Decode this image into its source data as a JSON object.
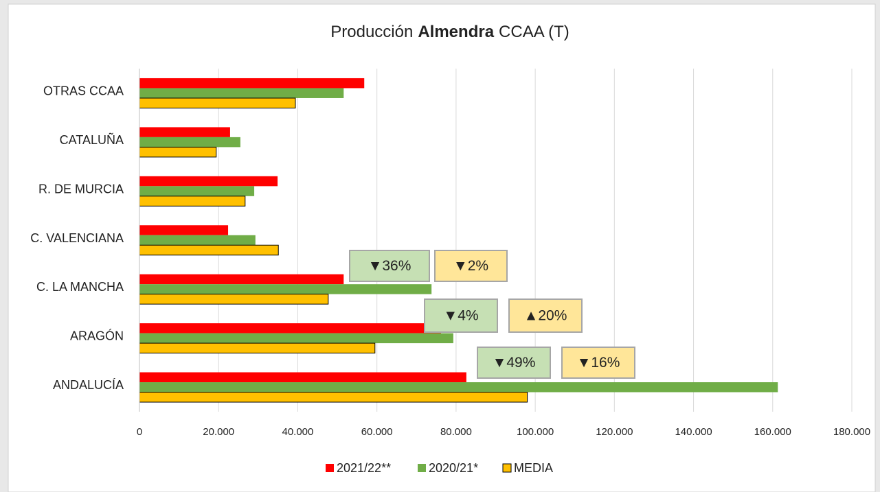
{
  "chart_data": {
    "type": "bar",
    "orientation": "horizontal",
    "title_parts": [
      "Producción",
      "Almendra",
      "CCAA (T)"
    ],
    "categories": [
      "ANDALUCÍA",
      "ARAGÓN",
      "C. LA MANCHA",
      "C. VALENCIANA",
      "R. DE MURCIA",
      "CATALUÑA",
      "OTRAS CCAA"
    ],
    "series": [
      {
        "name": "2021/22**",
        "color": "#ff0000",
        "values": [
          82600,
          76200,
          51600,
          22400,
          34900,
          22900,
          56800
        ]
      },
      {
        "name": "2020/21*",
        "color": "#70ad47",
        "values": [
          161300,
          79300,
          73800,
          29300,
          29000,
          25500,
          51600
        ]
      },
      {
        "name": "MEDIA",
        "color": "#ffc000",
        "values": [
          98000,
          59500,
          47700,
          35100,
          26700,
          19400,
          39400
        ]
      }
    ],
    "xlim": [
      0,
      180000
    ],
    "xticks": [
      0,
      {
        "value": 20000,
        "label": "20.000"
      },
      {
        "value": 40000,
        "label": "40.000"
      },
      {
        "value": 60000,
        "label": "60.000"
      },
      {
        "value": 80000,
        "label": "80.000"
      },
      {
        "value": 100000,
        "label": "100.000"
      },
      {
        "value": 120000,
        "label": "120.000"
      },
      {
        "value": 140000,
        "label": "140.000"
      },
      {
        "value": 160000,
        "label": "160.000"
      },
      {
        "value": 180000,
        "label": "180.000"
      }
    ],
    "grid": true,
    "legend": "bottom",
    "annotations": [
      {
        "text": "▼36%",
        "color": "#ff0000",
        "box": "#c6e0b4"
      },
      {
        "text": "▼2%",
        "color": "#ff0000",
        "box": "#ffe699"
      },
      {
        "text": "▼4%",
        "color": "#ff0000",
        "box": "#c6e0b4"
      },
      {
        "text": "▲20%",
        "color": "#00a040",
        "box": "#ffe699"
      },
      {
        "text": "▼49%",
        "color": "#ff0000",
        "box": "#c6e0b4"
      },
      {
        "text": "▼16%",
        "color": "#ff0000",
        "box": "#ffe699"
      }
    ]
  }
}
